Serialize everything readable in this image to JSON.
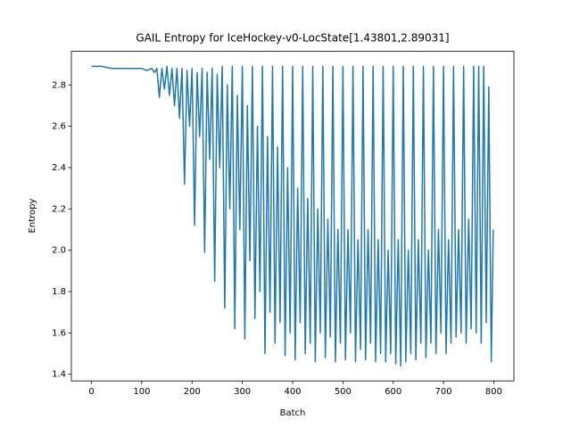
{
  "chart_data": {
    "type": "line",
    "title": "GAIL Entropy for IceHockey-v0-LocState[1.43801,2.89031]",
    "xlabel": "Batch",
    "ylabel": "Entropy",
    "xlim": [
      -40,
      840
    ],
    "ylim": [
      1.3675,
      2.9625
    ],
    "xticks": [
      0,
      100,
      200,
      300,
      400,
      500,
      600,
      700,
      800
    ],
    "yticks": [
      1.4,
      1.6,
      1.8,
      {
        "value": 2,
        "label": "2.0"
      },
      2.2,
      2.4,
      2.6,
      2.8
    ],
    "series": [
      {
        "color": "#1f77b4",
        "x": [
          0,
          20,
          40,
          60,
          80,
          100,
          110,
          120,
          125,
          130,
          135,
          140,
          145,
          150,
          155,
          160,
          165,
          170,
          175,
          180,
          185,
          190,
          195,
          200,
          205,
          210,
          215,
          220,
          225,
          230,
          235,
          240,
          245,
          250,
          255,
          260,
          265,
          270,
          275,
          280,
          285,
          290,
          295,
          300,
          305,
          310,
          315,
          320,
          325,
          330,
          335,
          340,
          345,
          350,
          355,
          360,
          365,
          370,
          375,
          380,
          385,
          390,
          395,
          400,
          405,
          410,
          415,
          420,
          425,
          430,
          435,
          440,
          445,
          450,
          455,
          460,
          465,
          470,
          475,
          480,
          485,
          490,
          495,
          500,
          505,
          510,
          515,
          520,
          525,
          530,
          535,
          540,
          545,
          550,
          555,
          560,
          565,
          570,
          575,
          580,
          585,
          590,
          595,
          600,
          605,
          610,
          615,
          620,
          625,
          630,
          635,
          640,
          645,
          650,
          655,
          660,
          665,
          670,
          675,
          680,
          685,
          690,
          695,
          700,
          705,
          710,
          715,
          720,
          725,
          730,
          735,
          740,
          745,
          750,
          755,
          760,
          765,
          770,
          775,
          780,
          785,
          790,
          795,
          799
        ],
        "values": [
          2.89,
          2.89,
          2.88,
          2.88,
          2.88,
          2.88,
          2.87,
          2.88,
          2.86,
          2.88,
          2.74,
          2.88,
          2.78,
          2.89,
          2.75,
          2.88,
          2.7,
          2.88,
          2.64,
          2.88,
          2.32,
          2.87,
          2.6,
          2.88,
          2.12,
          2.86,
          2.55,
          2.88,
          1.99,
          2.86,
          2.44,
          2.88,
          1.85,
          2.85,
          2.4,
          2.89,
          1.72,
          2.8,
          2.2,
          2.89,
          1.62,
          2.75,
          2.1,
          2.89,
          1.57,
          2.7,
          1.95,
          2.89,
          1.67,
          2.6,
          1.8,
          2.89,
          1.5,
          2.55,
          1.7,
          2.89,
          1.55,
          2.5,
          1.65,
          2.89,
          1.49,
          2.4,
          1.6,
          2.89,
          1.47,
          2.3,
          1.65,
          2.89,
          1.5,
          2.25,
          1.55,
          2.89,
          1.46,
          2.2,
          1.6,
          2.89,
          1.48,
          2.15,
          1.58,
          2.89,
          1.46,
          2.1,
          1.55,
          2.89,
          1.47,
          2.1,
          1.6,
          2.89,
          1.46,
          2.05,
          1.52,
          2.89,
          1.47,
          2.1,
          1.55,
          2.89,
          1.46,
          2.05,
          1.5,
          2.89,
          1.46,
          2.0,
          1.5,
          2.89,
          1.45,
          2.05,
          1.44,
          2.89,
          1.46,
          2.0,
          1.5,
          2.89,
          1.47,
          2.05,
          1.55,
          2.89,
          1.48,
          2.0,
          1.55,
          2.89,
          1.5,
          2.1,
          1.6,
          2.89,
          1.5,
          2.05,
          1.55,
          2.89,
          1.58,
          2.1,
          1.6,
          2.89,
          1.55,
          2.15,
          1.62,
          2.89,
          1.6,
          2.89,
          1.55,
          2.89,
          1.65,
          2.79,
          1.46,
          2.1
        ]
      }
    ]
  }
}
